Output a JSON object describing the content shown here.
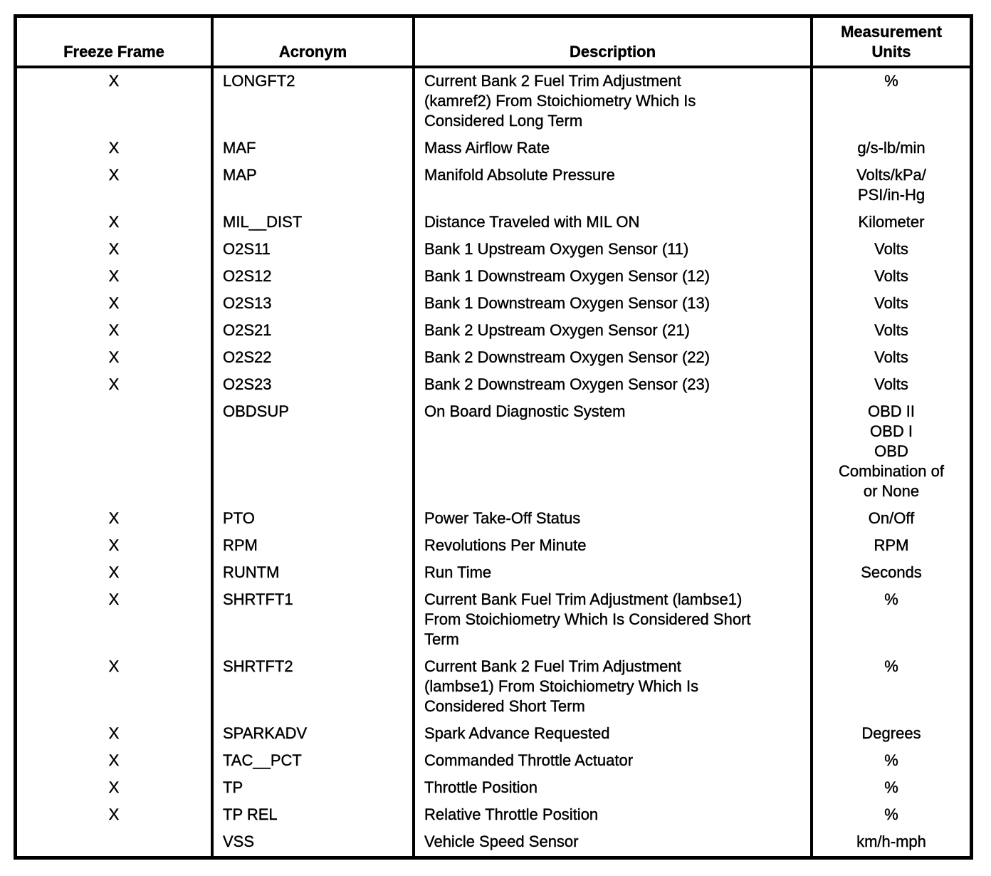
{
  "page": {
    "background_color": "#ffffff",
    "text_color": "#000000",
    "border_color": "#000000"
  },
  "table": {
    "headers": {
      "freeze_frame": "Freeze Frame",
      "acronym": "Acronym",
      "description": "Description",
      "measurement_units": [
        "Measurement",
        "Units"
      ]
    },
    "rows": [
      {
        "freeze_frame": "X",
        "acronym": "LONGFT2",
        "description": [
          "Current Bank 2 Fuel Trim Adjustment",
          "(kamref2) From Stoichiometry Which Is",
          "Considered Long Term"
        ],
        "units": [
          "%"
        ]
      },
      {
        "freeze_frame": "X",
        "acronym": "MAF",
        "description": [
          "Mass Airflow Rate"
        ],
        "units": [
          "g/s-lb/min"
        ]
      },
      {
        "freeze_frame": "X",
        "acronym": "MAP",
        "description": [
          "Manifold Absolute Pressure"
        ],
        "units": [
          "Volts/kPa/",
          "PSI/in-Hg"
        ]
      },
      {
        "freeze_frame": "X",
        "acronym": "MIL__DIST",
        "description": [
          "Distance Traveled with MIL ON"
        ],
        "units": [
          "Kilometer"
        ]
      },
      {
        "freeze_frame": "X",
        "acronym": "O2S11",
        "description": [
          "Bank 1 Upstream Oxygen Sensor (11)"
        ],
        "units": [
          "Volts"
        ]
      },
      {
        "freeze_frame": "X",
        "acronym": "O2S12",
        "description": [
          "Bank 1 Downstream Oxygen Sensor (12)"
        ],
        "units": [
          "Volts"
        ]
      },
      {
        "freeze_frame": "X",
        "acronym": "O2S13",
        "description": [
          "Bank 1 Downstream Oxygen Sensor (13)"
        ],
        "units": [
          "Volts"
        ]
      },
      {
        "freeze_frame": "X",
        "acronym": "O2S21",
        "description": [
          "Bank 2 Upstream Oxygen Sensor (21)"
        ],
        "units": [
          "Volts"
        ]
      },
      {
        "freeze_frame": "X",
        "acronym": "O2S22",
        "description": [
          "Bank 2 Downstream Oxygen Sensor (22)"
        ],
        "units": [
          "Volts"
        ]
      },
      {
        "freeze_frame": "X",
        "acronym": "O2S23",
        "description": [
          "Bank 2 Downstream Oxygen Sensor (23)"
        ],
        "units": [
          "Volts"
        ]
      },
      {
        "freeze_frame": "",
        "acronym": "OBDSUP",
        "description": [
          "On Board Diagnostic System"
        ],
        "units": [
          "OBD II",
          "OBD I",
          "OBD",
          "Combination of",
          "or None"
        ]
      },
      {
        "freeze_frame": "X",
        "acronym": "PTO",
        "description": [
          "Power Take-Off Status"
        ],
        "units": [
          "On/Off"
        ]
      },
      {
        "freeze_frame": "X",
        "acronym": "RPM",
        "description": [
          "Revolutions Per Minute"
        ],
        "units": [
          "RPM"
        ]
      },
      {
        "freeze_frame": "X",
        "acronym": "RUNTM",
        "description": [
          "Run Time"
        ],
        "units": [
          "Seconds"
        ]
      },
      {
        "freeze_frame": "X",
        "acronym": "SHRTFT1",
        "description": [
          "Current Bank Fuel Trim Adjustment (lambse1)",
          "From Stoichiometry Which Is Considered Short",
          "Term"
        ],
        "units": [
          "%"
        ]
      },
      {
        "freeze_frame": "X",
        "acronym": "SHRTFT2",
        "description": [
          "Current Bank 2 Fuel Trim Adjustment",
          "(lambse1) From Stoichiometry Which Is",
          "Considered Short Term"
        ],
        "units": [
          "%"
        ]
      },
      {
        "freeze_frame": "X",
        "acronym": "SPARKADV",
        "description": [
          "Spark Advance Requested"
        ],
        "units": [
          "Degrees"
        ]
      },
      {
        "freeze_frame": "X",
        "acronym": "TAC__PCT",
        "description": [
          "Commanded Throttle Actuator"
        ],
        "units": [
          "%"
        ]
      },
      {
        "freeze_frame": "X",
        "acronym": "TP",
        "description": [
          "Throttle Position"
        ],
        "units": [
          "%"
        ]
      },
      {
        "freeze_frame": "X",
        "acronym": "TP REL",
        "description": [
          "Relative Throttle Position"
        ],
        "units": [
          "%"
        ]
      },
      {
        "freeze_frame": "",
        "acronym": "VSS",
        "description": [
          "Vehicle Speed Sensor"
        ],
        "units": [
          "km/h-mph"
        ]
      }
    ]
  }
}
